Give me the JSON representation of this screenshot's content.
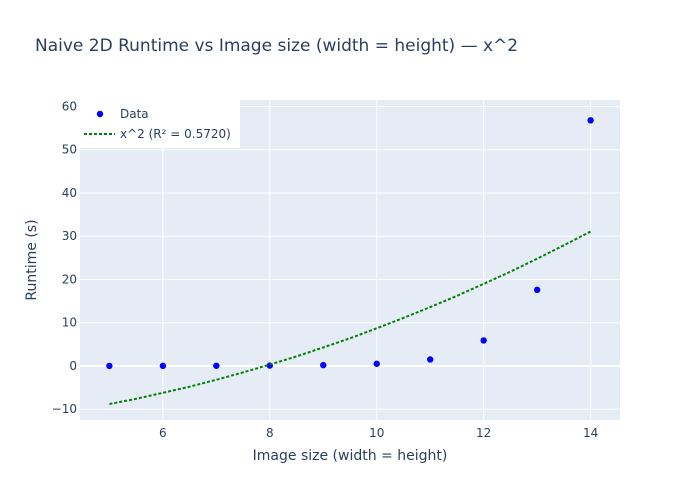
{
  "chart_data": {
    "type": "scatter",
    "title": "Naive 2D Runtime vs Image size (width = height) — x^2",
    "xlabel": "Image size (width = height)",
    "ylabel": "Runtime (s)",
    "xlim": [
      4.45,
      14.55
    ],
    "ylim": [
      -12.5,
      61.5
    ],
    "x_ticks": [
      6,
      8,
      10,
      12,
      14
    ],
    "y_ticks": [
      -10,
      0,
      10,
      20,
      30,
      40,
      50,
      60
    ],
    "grid": true,
    "legend_position": "top-left",
    "series": [
      {
        "name": "Data",
        "mode": "markers",
        "color": "#0000ff",
        "x": [
          5,
          6,
          7,
          8,
          9,
          10,
          11,
          12,
          13,
          14
        ],
        "y": [
          0.01,
          0.02,
          0.04,
          0.08,
          0.18,
          0.5,
          1.5,
          5.9,
          17.6,
          56.8
        ]
      },
      {
        "name": "x^2 (R² = 0.5720)",
        "mode": "line",
        "line_style": "dotted",
        "color": "#008000",
        "x": [
          5,
          5.5,
          6,
          6.5,
          7,
          7.5,
          8,
          8.5,
          9,
          9.5,
          10,
          10.5,
          11,
          11.5,
          12,
          12.5,
          13,
          13.5,
          14
        ],
        "y": [
          -8.8,
          -7.6,
          -6.2,
          -4.8,
          -3.2,
          -1.5,
          0.3,
          2.2,
          4.3,
          6.4,
          8.7,
          11.1,
          13.6,
          16.2,
          19.0,
          21.8,
          24.8,
          27.9,
          31.1
        ]
      }
    ]
  }
}
